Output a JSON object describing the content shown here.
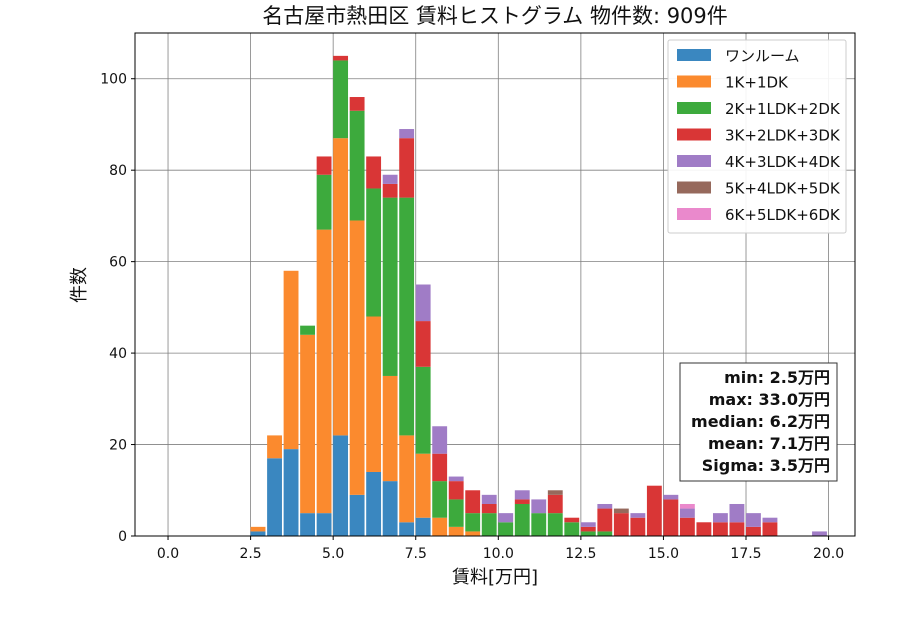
{
  "chart_data": {
    "type": "bar",
    "stacked": true,
    "title": "名古屋市熱田区 賃料ヒストグラム 物件数: 909件",
    "xlabel": "賃料[万円]",
    "ylabel": "件数",
    "xlim": [
      -1.0,
      20.8
    ],
    "ylim": [
      0,
      110
    ],
    "xticks": [
      "0.0",
      "2.5",
      "5.0",
      "7.5",
      "10.0",
      "12.5",
      "15.0",
      "17.5",
      "20.0"
    ],
    "yticks": [
      "0",
      "20",
      "40",
      "60",
      "80",
      "100"
    ],
    "grid": true,
    "legend_position": "top-right",
    "bin_width": 0.5,
    "x": [
      2.5,
      3.0,
      3.5,
      4.0,
      4.5,
      5.0,
      5.5,
      6.0,
      6.5,
      7.0,
      7.5,
      8.0,
      8.5,
      9.0,
      9.5,
      10.0,
      10.5,
      11.0,
      11.5,
      12.0,
      12.5,
      13.0,
      13.5,
      14.0,
      14.5,
      15.0,
      15.5,
      16.0,
      16.5,
      17.0,
      17.5,
      18.0,
      19.5
    ],
    "series": [
      {
        "name": "ワンルーム",
        "color": "#3a87c0",
        "values": [
          1,
          17,
          19,
          5,
          5,
          22,
          9,
          14,
          12,
          3,
          4,
          0,
          0,
          0,
          0,
          0,
          0,
          0,
          0,
          0,
          0,
          0,
          0,
          0,
          0,
          0,
          0,
          0,
          0,
          0,
          0,
          0,
          0
        ]
      },
      {
        "name": "1K+1DK",
        "color": "#fb8a2e",
        "values": [
          1,
          5,
          39,
          39,
          62,
          65,
          60,
          34,
          23,
          19,
          14,
          4,
          2,
          1,
          0,
          0,
          0,
          0,
          0,
          0,
          0,
          0,
          0,
          0,
          0,
          0,
          0,
          0,
          0,
          0,
          0,
          0,
          0
        ]
      },
      {
        "name": "2K+1LDK+2DK",
        "color": "#3daa3d",
        "values": [
          0,
          0,
          0,
          2,
          12,
          17,
          24,
          28,
          39,
          52,
          19,
          8,
          6,
          4,
          5,
          3,
          7,
          5,
          5,
          3,
          1,
          1,
          0,
          0,
          0,
          0,
          0,
          0,
          0,
          0,
          0,
          0,
          0
        ]
      },
      {
        "name": "3K+2LDK+3DK",
        "color": "#d93636",
        "values": [
          0,
          0,
          0,
          0,
          4,
          1,
          3,
          7,
          3,
          13,
          10,
          6,
          4,
          5,
          2,
          0,
          1,
          0,
          4,
          1,
          1,
          5,
          5,
          4,
          11,
          8,
          4,
          3,
          3,
          3,
          2,
          3,
          0
        ]
      },
      {
        "name": "4K+3LDK+4DK",
        "color": "#a07cc6",
        "values": [
          0,
          0,
          0,
          0,
          0,
          0,
          0,
          0,
          2,
          2,
          8,
          6,
          1,
          0,
          2,
          2,
          2,
          3,
          0,
          0,
          1,
          1,
          0,
          1,
          0,
          1,
          2,
          0,
          2,
          4,
          3,
          1,
          1
        ]
      },
      {
        "name": "5K+4LDK+5DK",
        "color": "#96695c",
        "values": [
          0,
          0,
          0,
          0,
          0,
          0,
          0,
          0,
          0,
          0,
          0,
          0,
          0,
          0,
          0,
          0,
          0,
          0,
          1,
          0,
          0,
          0,
          1,
          0,
          0,
          0,
          0,
          0,
          0,
          0,
          0,
          0,
          0
        ]
      },
      {
        "name": "6K+5LDK+6DK",
        "color": "#ea89cc",
        "values": [
          0,
          0,
          0,
          0,
          0,
          0,
          0,
          0,
          0,
          0,
          0,
          0,
          0,
          0,
          0,
          0,
          0,
          0,
          0,
          0,
          0,
          0,
          0,
          0,
          0,
          0,
          1,
          0,
          0,
          0,
          0,
          0,
          0
        ]
      }
    ],
    "stats": [
      "min: 2.5万円",
      "max: 33.0万円",
      "median: 6.2万円",
      "mean: 7.1万円",
      "Sigma: 3.5万円"
    ]
  }
}
